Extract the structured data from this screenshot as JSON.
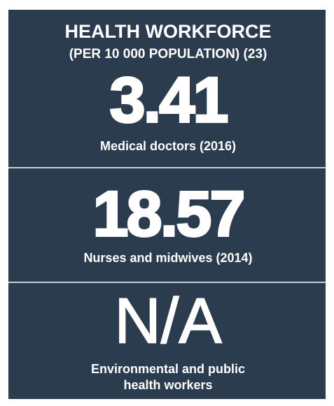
{
  "title": "HEALTH WORKFORCE",
  "subtitle": "(PER 10 000 POPULATION) (23)",
  "stats": [
    {
      "value": "3.41",
      "label": [
        "Medical doctors (2016)"
      ]
    },
    {
      "value": "18.57",
      "label": [
        "Nurses and midwives (2014)"
      ]
    },
    {
      "value": "N/A",
      "label": [
        "Environmental and public",
        "health workers"
      ]
    }
  ]
}
